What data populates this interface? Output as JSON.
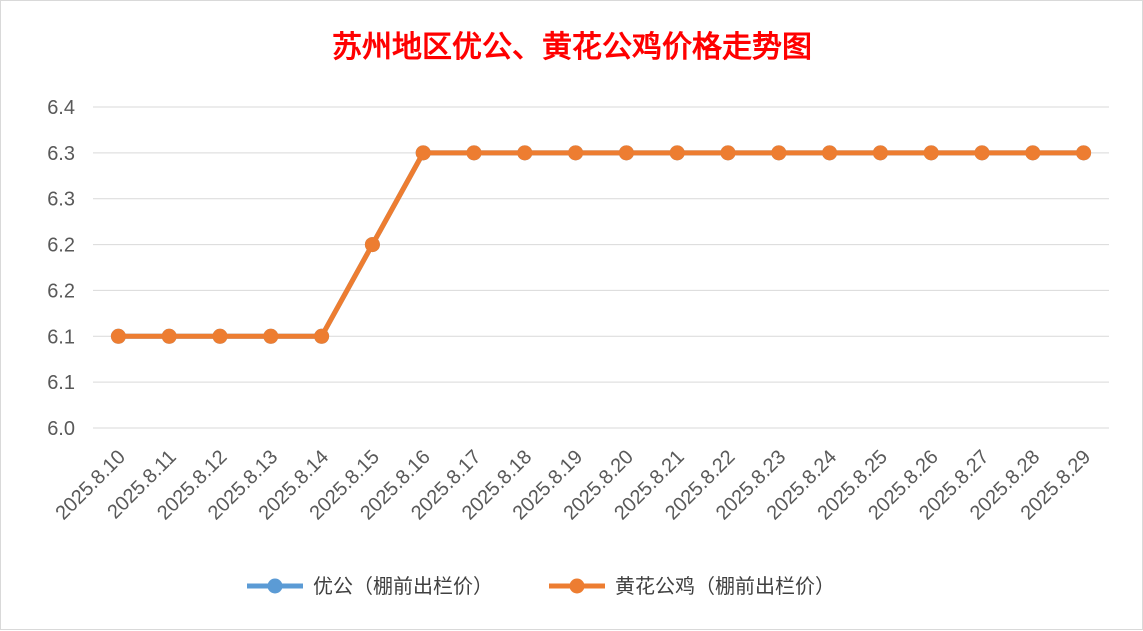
{
  "chart_data": {
    "type": "line",
    "title": "苏州地区优公、黄花公鸡价格走势图",
    "categories": [
      "2025.8.10",
      "2025.8.11",
      "2025.8.12",
      "2025.8.13",
      "2025.8.14",
      "2025.8.15",
      "2025.8.16",
      "2025.8.17",
      "2025.8.18",
      "2025.8.19",
      "2025.8.20",
      "2025.8.21",
      "2025.8.22",
      "2025.8.23",
      "2025.8.24",
      "2025.8.25",
      "2025.8.26",
      "2025.8.27",
      "2025.8.28",
      "2025.8.29"
    ],
    "y_ticks": [
      "6.0",
      "6.1",
      "6.1",
      "6.2",
      "6.2",
      "6.3",
      "6.3",
      "6.4"
    ],
    "ylim": [
      6.0,
      6.35
    ],
    "grid": true,
    "legend_position": "bottom",
    "series": [
      {
        "name": "优公（棚前出栏价）",
        "color": "#5b9bd5",
        "values": [
          6.1,
          6.1,
          6.1,
          6.1,
          6.1,
          6.2,
          6.3,
          6.3,
          6.3,
          6.3,
          6.3,
          6.3,
          6.3,
          6.3,
          6.3,
          6.3,
          6.3,
          6.3,
          6.3,
          6.3
        ]
      },
      {
        "name": "黄花公鸡（棚前出栏价）",
        "color": "#ed7d31",
        "values": [
          6.1,
          6.1,
          6.1,
          6.1,
          6.1,
          6.2,
          6.3,
          6.3,
          6.3,
          6.3,
          6.3,
          6.3,
          6.3,
          6.3,
          6.3,
          6.3,
          6.3,
          6.3,
          6.3,
          6.3
        ]
      }
    ]
  }
}
